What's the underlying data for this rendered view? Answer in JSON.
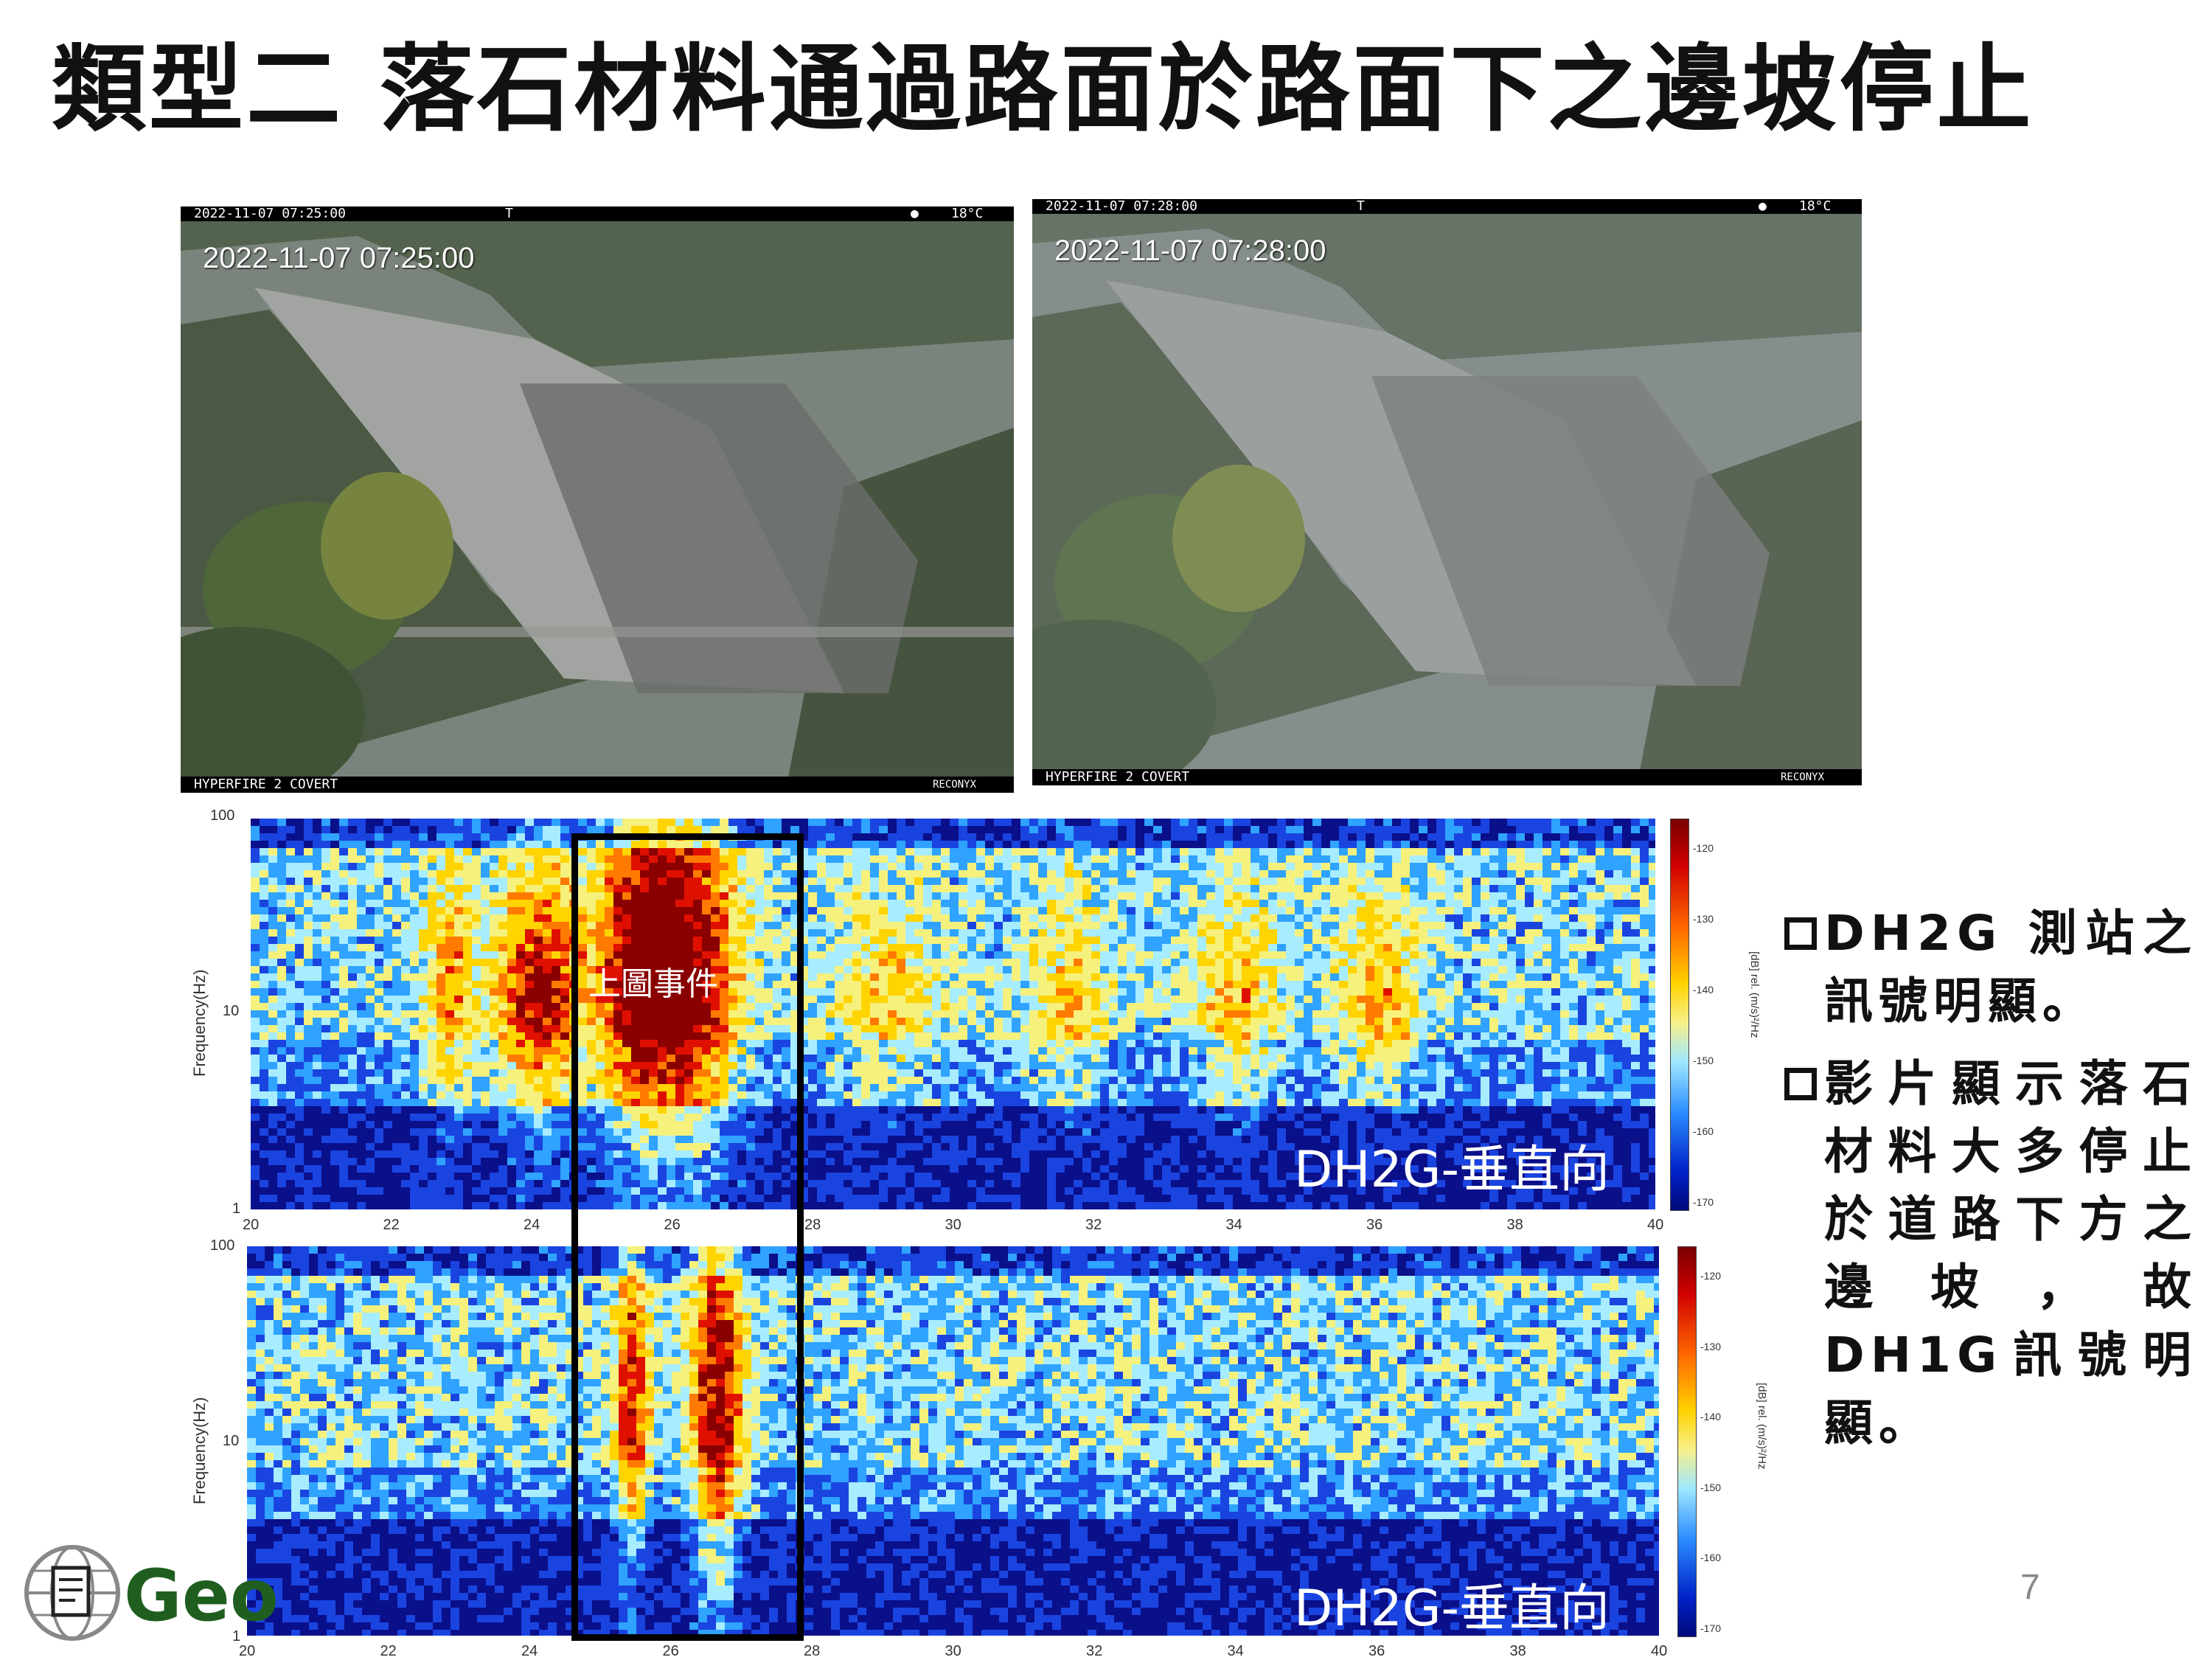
{
  "title": "類型二 落石材料通過路面於路面下之邊坡停止",
  "photos": [
    {
      "top_date": "2022-11-07 07:25:00",
      "top_mid": "T",
      "top_temp": "18°C",
      "overlay": "2022-11-07 07:25:00",
      "bottom_left": "HYPERFIRE 2 COVERT",
      "brand": "RECONYX"
    },
    {
      "top_date": "2022-11-07 07:28:00",
      "top_mid": "T",
      "top_temp": "18°C",
      "overlay": "2022-11-07 07:28:00",
      "bottom_left": "HYPERFIRE 2 COVERT",
      "brand": "RECONYX"
    }
  ],
  "spectrograms": [
    {
      "label": "DH2G-垂直向",
      "ylabel": "Frequency(Hz)",
      "yticks": [
        "100",
        "10",
        "1"
      ],
      "xticks": [
        "20",
        "22",
        "24",
        "26",
        "28",
        "30",
        "32",
        "34",
        "36",
        "38",
        "40"
      ],
      "colorbar_ticks": [
        "-120",
        "-130",
        "-140",
        "-150",
        "-160",
        "-170"
      ],
      "colorbar_label": "[dB] rel. (m/s)²/Hz",
      "event_label": "上圖事件"
    },
    {
      "label": "DH2G-垂直向",
      "ylabel": "Frequency(Hz)",
      "yticks": [
        "100",
        "10",
        "1"
      ],
      "xticks": [
        "20",
        "22",
        "24",
        "26",
        "28",
        "30",
        "32",
        "34",
        "36",
        "38",
        "40"
      ],
      "colorbar_ticks": [
        "-120",
        "-130",
        "-140",
        "-150",
        "-160",
        "-170"
      ],
      "colorbar_label": "[dB] rel. (m/s)²/Hz"
    }
  ],
  "bullets": [
    "DH2G 測站之訊號明顯。",
    "影片顯示落石材料大多停止於道路下方之邊坡，故DH1G訊號明顯。"
  ],
  "page_number": "7",
  "logo": {
    "text": "Geo"
  }
}
